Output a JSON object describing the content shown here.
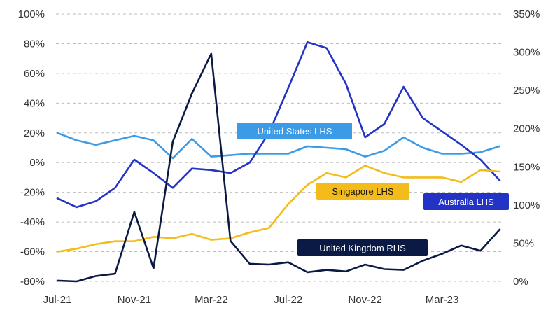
{
  "chart_data": {
    "type": "line",
    "title": "",
    "x_tick_labels": [
      "Jul-21",
      "Nov-21",
      "Mar-22",
      "Jul-22",
      "Nov-22",
      "Mar-23"
    ],
    "y_left": {
      "min": -80,
      "max": 100,
      "step": 20,
      "tick_labels": [
        "100%",
        "80%",
        "60%",
        "40%",
        "20%",
        "0%",
        "-20%",
        "-40%",
        "-60%",
        "-80%"
      ]
    },
    "y_right": {
      "min": 0,
      "max": 350,
      "step": 50,
      "tick_labels": [
        "350%",
        "300%",
        "250%",
        "200%",
        "150%",
        "100%",
        "50%",
        "0%"
      ]
    },
    "x": [
      "2021-07",
      "2021-08",
      "2021-09",
      "2021-10",
      "2021-11",
      "2021-12",
      "2022-01",
      "2022-02",
      "2022-03",
      "2022-04",
      "2022-05",
      "2022-06",
      "2022-07",
      "2022-08",
      "2022-09",
      "2022-10",
      "2022-11",
      "2022-12",
      "2023-01",
      "2023-02",
      "2023-03",
      "2023-04",
      "2023-05",
      "2023-06"
    ],
    "grid": {
      "horizontal": true,
      "style": "dashed"
    },
    "series": [
      {
        "name": "United States LHS",
        "axis": "left",
        "color": "#3c9be6",
        "values": [
          20,
          15,
          12,
          15,
          18,
          15,
          3,
          16,
          4,
          5,
          6,
          6,
          6,
          11,
          10,
          9,
          4,
          8,
          17,
          10,
          6,
          6,
          7,
          11
        ]
      },
      {
        "name": "Australia LHS",
        "axis": "left",
        "color": "#2233c6",
        "values": [
          -24,
          -30,
          -26,
          -17,
          2,
          -7,
          -17,
          -4,
          -5,
          -7,
          0,
          20,
          50,
          81,
          77,
          53,
          17,
          26,
          51,
          30,
          21,
          12,
          2,
          -12
        ]
      },
      {
        "name": "Singapore LHS",
        "axis": "left",
        "color": "#f4bc1a",
        "values": [
          -60,
          -58,
          -55,
          -53,
          -53,
          -50,
          -51,
          -48,
          -52,
          -51,
          -47,
          -44,
          -28,
          -15,
          -7,
          -10,
          -2,
          -7,
          -10,
          -10,
          -10,
          -13,
          -5,
          -6
        ]
      },
      {
        "name": "United Kingdom RHS",
        "axis": "right",
        "color": "#0a1a45",
        "values": [
          1,
          0,
          7,
          10,
          91,
          17,
          183,
          246,
          298,
          53,
          23,
          22,
          25,
          12,
          15,
          13,
          22,
          16,
          15,
          27,
          36,
          47,
          40,
          68
        ]
      }
    ],
    "legend": [
      {
        "label": "United States LHS",
        "bg": "#3c9be6",
        "fg": "#ffffff"
      },
      {
        "label": "Singapore LHS",
        "bg": "#f4bc1a",
        "fg": "#111111"
      },
      {
        "label": "Australia LHS",
        "bg": "#2233c6",
        "fg": "#ffffff"
      },
      {
        "label": "United Kingdom RHS",
        "bg": "#0a1a45",
        "fg": "#ffffff"
      }
    ]
  }
}
